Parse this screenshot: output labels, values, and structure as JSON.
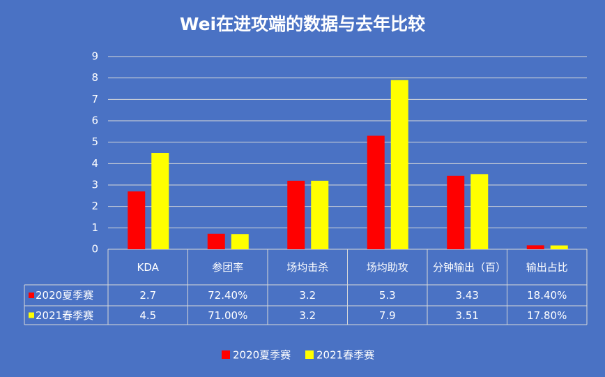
{
  "chart_data": {
    "type": "bar",
    "title": "Wei在进攻端的数据与去年比较",
    "categories": [
      "KDA",
      "参团率",
      "场均击杀",
      "场均助攻",
      "分钟输出（百）",
      "输出占比"
    ],
    "series": [
      {
        "name": "2020夏季赛",
        "color": "#ff0000",
        "values": [
          2.7,
          0.724,
          3.2,
          5.3,
          3.43,
          0.184
        ],
        "value_labels": [
          "2.7",
          "72.40%",
          "3.2",
          "5.3",
          "3.43",
          "18.40%"
        ]
      },
      {
        "name": "2021春季赛",
        "color": "#ffff00",
        "values": [
          4.5,
          0.71,
          3.2,
          7.9,
          3.51,
          0.178
        ],
        "value_labels": [
          "4.5",
          "71.00%",
          "3.2",
          "7.9",
          "3.51",
          "17.80%"
        ]
      }
    ],
    "ylim": [
      0,
      9
    ],
    "yticks": [
      0,
      1,
      2,
      3,
      4,
      5,
      6,
      7,
      8,
      9
    ],
    "grid": true,
    "legend": "bottom"
  }
}
